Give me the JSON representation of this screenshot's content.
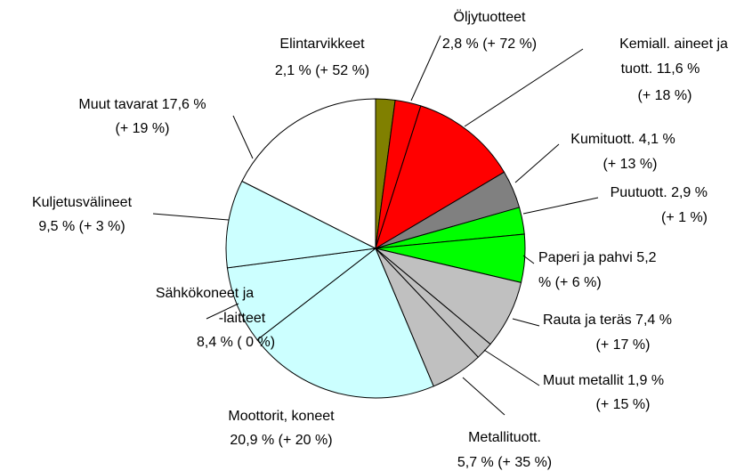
{
  "chart_data": {
    "type": "pie",
    "categories": [
      "Elintarvikkeet",
      "Öljytuotteet",
      "Kemiall. aineet ja tuott.",
      "Kumituott.",
      "Puutuott.",
      "Paperi ja pahvi",
      "Rauta ja teräs",
      "Muut metallit",
      "Metallituott.",
      "Moottorit, koneet",
      "Sähkökoneet ja -laitteet",
      "Kuljetusvälineet",
      "Muut tavarat"
    ],
    "values": [
      2.1,
      2.8,
      11.6,
      4.1,
      2.9,
      5.2,
      7.4,
      1.9,
      5.7,
      20.9,
      8.4,
      9.5,
      17.6
    ],
    "value_labels": [
      [
        "Elintarvikkeet",
        "2,1 % (+ 52 %)"
      ],
      [
        "Öljytuotteet",
        "2,8 % (+ 72 %)"
      ],
      [
        "Kemiall. aineet ja",
        "tuott. 11,6 %",
        "(+ 18 %)"
      ],
      [
        "Kumituott. 4,1 %",
        "(+ 13 %)"
      ],
      [
        "Puutuott. 2,9 %",
        "(+ 1 %)"
      ],
      [
        "Paperi ja pahvi 5,2",
        "% (+ 6 %)"
      ],
      [
        "Rauta ja teräs 7,4 %",
        "(+ 17 %)"
      ],
      [
        "Muut metallit 1,9 %",
        "(+ 15 %)"
      ],
      [
        "Metallituott.",
        "5,7 % (+ 35 %)"
      ],
      [
        "Moottorit, koneet",
        "20,9 % (+ 20 %)"
      ],
      [
        "Sähkökoneet ja",
        "-laitteet",
        "8,4 % ( 0 %)"
      ],
      [
        "Kuljetusvälineet",
        "9,5 % (+ 3 %)"
      ],
      [
        "Muut tavarat 17,6 %",
        "(+ 19 %)"
      ]
    ],
    "colors": [
      "#808000",
      "#ff0000",
      "#ff0000",
      "#808080",
      "#00ff00",
      "#00ff00",
      "#c0c0c0",
      "#c0c0c0",
      "#c0c0c0",
      "#ccffff",
      "#ccffff",
      "#ccffff",
      "#ffffff"
    ]
  }
}
